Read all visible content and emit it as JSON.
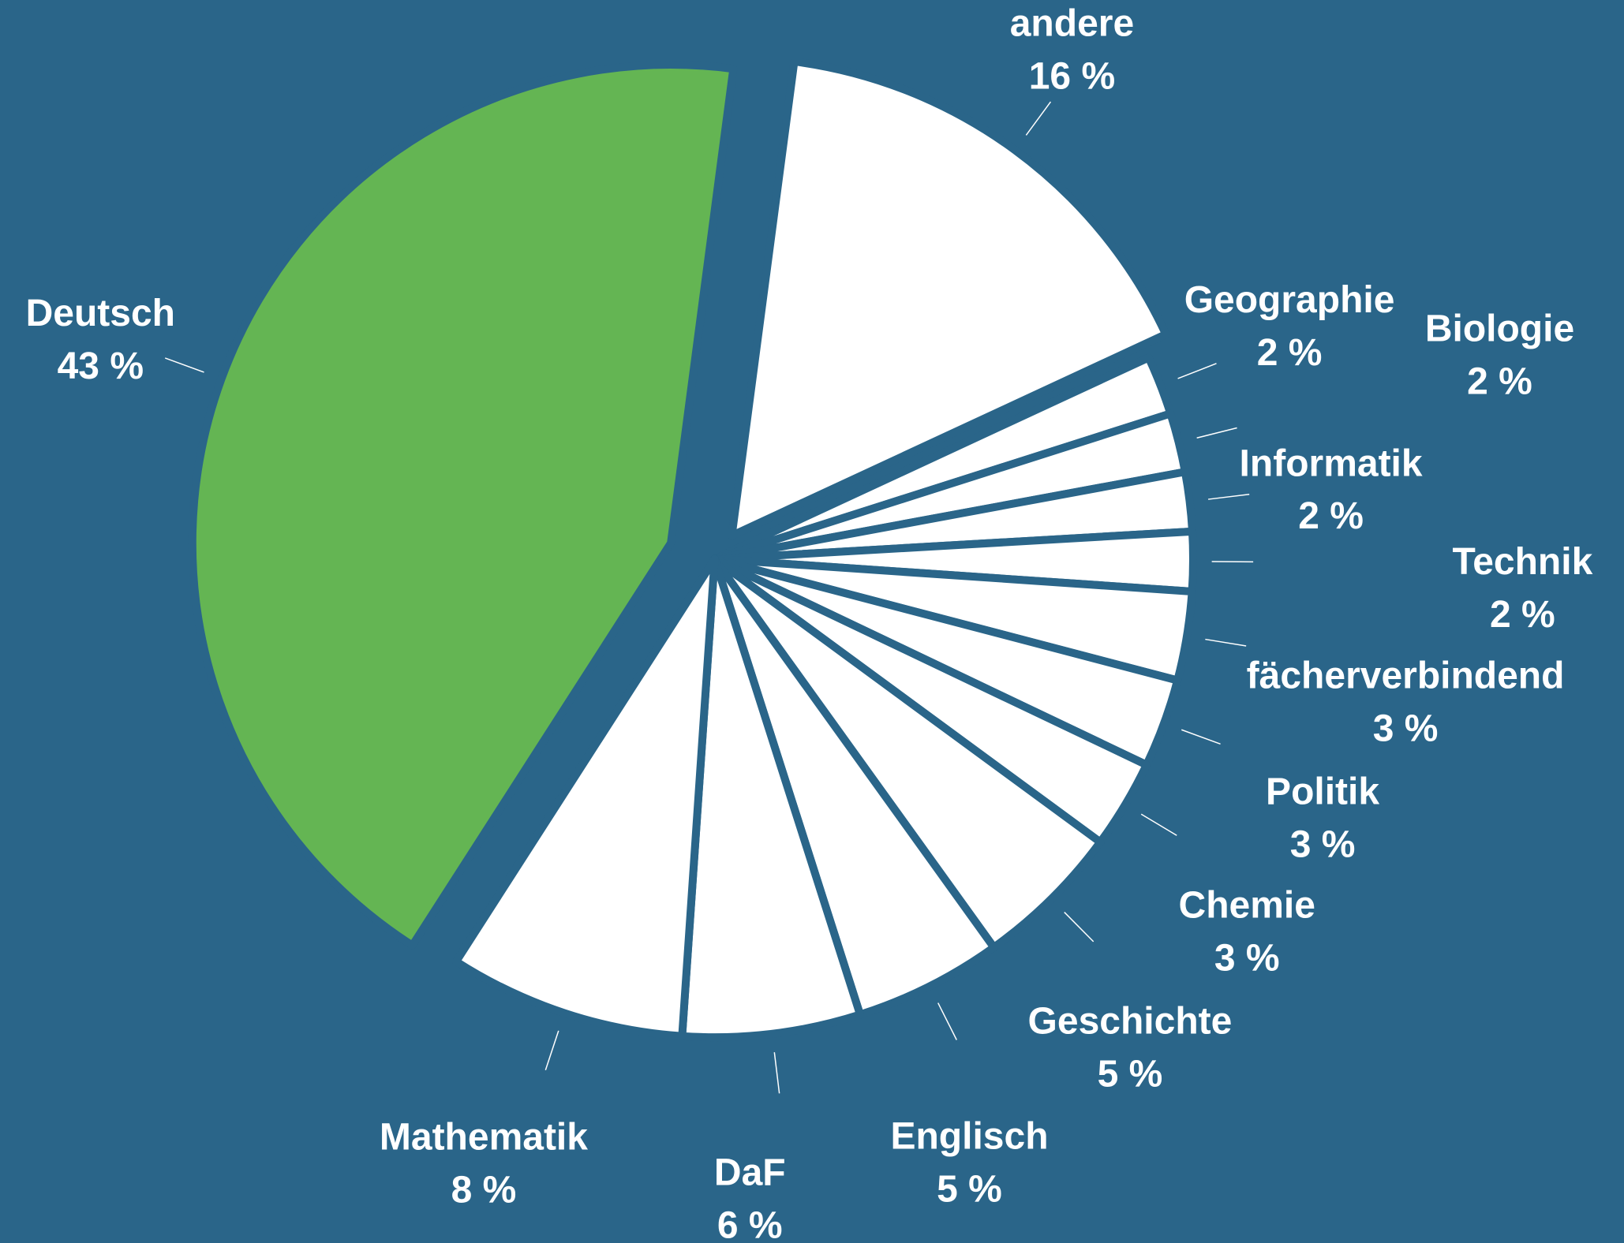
{
  "chart_data": {
    "type": "pie",
    "categories": [
      "andere",
      "Geographie",
      "Biologie",
      "Informatik",
      "Technik",
      "fächerverbindend",
      "Politik",
      "Chemie",
      "Geschichte",
      "Englisch",
      "DaF",
      "Mathematik",
      "Deutsch"
    ],
    "values": [
      16,
      2,
      2,
      2,
      2,
      3,
      3,
      3,
      5,
      5,
      6,
      8,
      43
    ],
    "value_labels": [
      "16 %",
      "2 %",
      "2 %",
      "2 %",
      "2 %",
      "3 %",
      "3 %",
      "3 %",
      "5 %",
      "5 %",
      "6 %",
      "8 %",
      "43 %"
    ],
    "colors": [
      "#ffffff",
      "#ffffff",
      "#ffffff",
      "#ffffff",
      "#ffffff",
      "#ffffff",
      "#ffffff",
      "#ffffff",
      "#ffffff",
      "#ffffff",
      "#ffffff",
      "#ffffff",
      "#64b553"
    ],
    "background": "#2a6589"
  }
}
